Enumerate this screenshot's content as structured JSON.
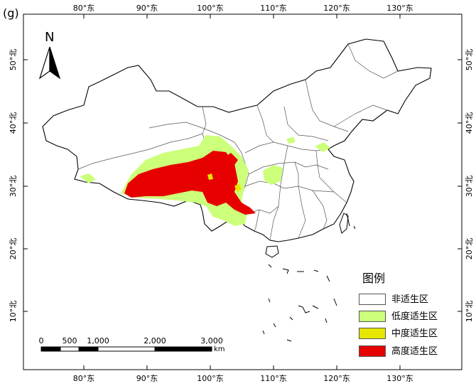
{
  "panel_label": "(g)",
  "axes": {
    "top_ticks": [
      "80°东",
      "90°东",
      "100°东",
      "110°东",
      "120°东",
      "130°东"
    ],
    "bottom_ticks": [
      "80°东",
      "90°东",
      "100°东",
      "110°东",
      "120°东",
      "130°东"
    ],
    "left_ticks": [
      "50°北",
      "40°北",
      "30°北",
      "20°北",
      "10°北"
    ],
    "right_ticks": [
      "50°北",
      "40°北",
      "30°北",
      "20°北",
      "10°北"
    ]
  },
  "north_arrow": {
    "letter": "N",
    "icon": "north-arrow-icon"
  },
  "scale_bar": {
    "labels": [
      "0",
      "500",
      "1,000",
      "2,000",
      "3,000"
    ],
    "unit": "km"
  },
  "legend": {
    "title": "图例",
    "items": [
      {
        "label": "非适生区",
        "color": "#ffffff"
      },
      {
        "label": "低度适生区",
        "color": "#ccff7a"
      },
      {
        "label": "中度适生区",
        "color": "#e6e600"
      },
      {
        "label": "高度适生区",
        "color": "#e60000"
      }
    ]
  }
}
